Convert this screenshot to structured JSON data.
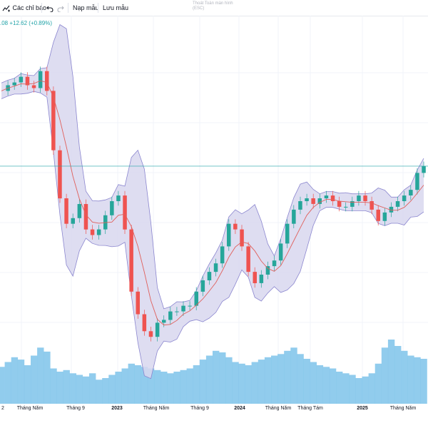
{
  "toolbar": {
    "indicators_label": "Các chỉ báo",
    "templates_label": "Nạp mẫu",
    "save_label": "Lưu mẫu",
    "fullscreen_hint_line1": "Thoát Toàn màn hình",
    "fullscreen_hint_line2": "(ESC)"
  },
  "quote": {
    "price_fragment": ".08",
    "change": "+12.62",
    "change_percent": "(+0.89%)"
  },
  "x_axis": {
    "labels": [
      {
        "text": "2",
        "year": false
      },
      {
        "text": "Tháng Năm",
        "year": false
      },
      {
        "text": "Tháng 9",
        "year": false
      },
      {
        "text": "2023",
        "year": true
      },
      {
        "text": "Tháng Năm",
        "year": false
      },
      {
        "text": "Tháng 9",
        "year": false
      },
      {
        "text": "2024",
        "year": true
      },
      {
        "text": "Tháng Năm",
        "year": false
      },
      {
        "text": "Tháng Tám",
        "year": false
      },
      {
        "text": "2025",
        "year": true
      },
      {
        "text": "Tháng Năm",
        "year": false
      }
    ]
  },
  "colors": {
    "up": "#26a69a",
    "down": "#ef5350",
    "band_fill": "#d8d7ee",
    "band_line": "#8b86cf",
    "ma_line": "#e0605c",
    "volume": "#7ec3ea",
    "price_line": "#22a3a8",
    "accent": "#2962ff"
  },
  "chart_data": {
    "type": "line",
    "series": [
      {
        "values": [
          1395,
          1405,
          1410,
          1420,
          1405,
          1400,
          1430,
          1395,
          1290,
          1205,
          1160,
          1170,
          1195,
          1150,
          1140,
          1150,
          1175,
          1200,
          1210,
          1150,
          1040,
          1000,
          970,
          960,
          985,
          990,
          1005,
          1005,
          1015,
          1015,
          1040,
          1060,
          1075,
          1090,
          1120,
          1160,
          1150,
          1120,
          1075,
          1055,
          1070,
          1085,
          1095,
          1125,
          1160,
          1185,
          1200,
          1205,
          1195,
          1205,
          1210,
          1200,
          1190,
          1190,
          1200,
          1210,
          1200,
          1185,
          1165,
          1180,
          1190,
          1200,
          1210,
          1220,
          1250,
          1262
        ]
      }
    ],
    "volume": [
      46,
      52,
      58,
      55,
      48,
      60,
      70,
      65,
      44,
      40,
      42,
      38,
      36,
      34,
      38,
      30,
      32,
      36,
      40,
      44,
      50,
      48,
      46,
      44,
      42,
      40,
      38,
      40,
      42,
      44,
      48,
      55,
      60,
      66,
      64,
      58,
      52,
      50,
      48,
      52,
      55,
      58,
      60,
      62,
      66,
      70,
      62,
      56,
      52,
      48,
      46,
      44,
      40,
      38,
      36,
      32,
      34,
      38,
      50,
      70,
      80,
      72,
      66,
      60,
      58,
      56
    ]
  }
}
